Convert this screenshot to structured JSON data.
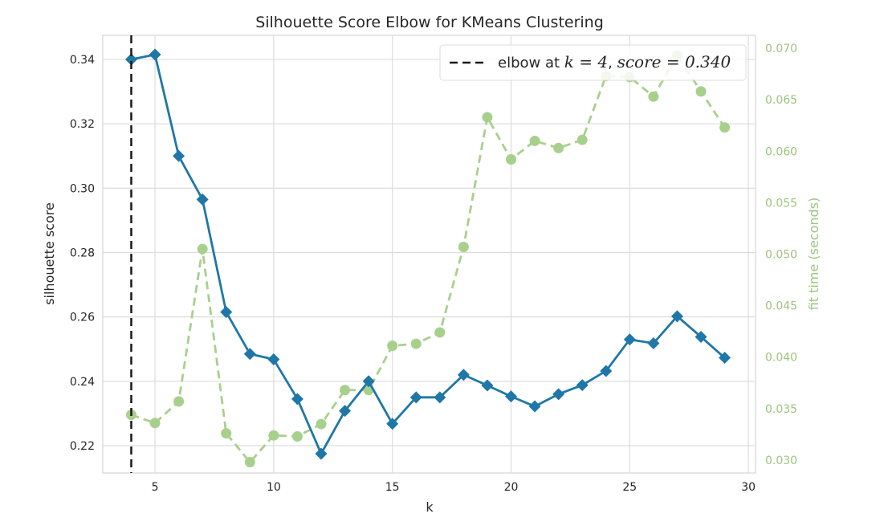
{
  "chart_data": {
    "type": "line",
    "title": "Silhouette Score Elbow for KMeans Clustering",
    "xlabel": "k",
    "ylabel": "silhouette score",
    "y2label": "fit time (seconds)",
    "xlim": [
      2.8,
      30.3
    ],
    "ylim": [
      0.2115,
      0.3475
    ],
    "y2lim": [
      0.02875,
      0.07125
    ],
    "x_ticks": [
      5,
      10,
      15,
      20,
      25,
      30
    ],
    "y_ticks": [
      0.22,
      0.24,
      0.26,
      0.28,
      0.3,
      0.32,
      0.34
    ],
    "y_tick_labels": [
      "0.22",
      "0.24",
      "0.26",
      "0.28",
      "0.30",
      "0.32",
      "0.34"
    ],
    "y2_ticks": [
      0.03,
      0.035,
      0.04,
      0.045,
      0.05,
      0.055,
      0.06,
      0.065,
      0.07
    ],
    "y2_tick_labels": [
      "0.030",
      "0.035",
      "0.040",
      "0.045",
      "0.050",
      "0.055",
      "0.060",
      "0.065",
      "0.070"
    ],
    "grid": true,
    "legend_position": "top-right",
    "x": [
      4,
      5,
      6,
      7,
      8,
      9,
      10,
      11,
      12,
      13,
      14,
      15,
      16,
      17,
      18,
      19,
      20,
      21,
      22,
      23,
      24,
      25,
      26,
      27,
      28,
      29
    ],
    "series": [
      {
        "axis": "left",
        "color": "#1f77a8",
        "marker": "diamond",
        "values": [
          0.34,
          0.3415,
          0.31,
          0.2965,
          0.2615,
          0.2485,
          0.2468,
          0.2345,
          0.2175,
          0.2308,
          0.24,
          0.2268,
          0.235,
          0.235,
          0.242,
          0.2387,
          0.2353,
          0.2322,
          0.236,
          0.2388,
          0.2432,
          0.253,
          0.2518,
          0.2602,
          0.2538,
          0.2473
        ]
      },
      {
        "axis": "right",
        "color": "#a8d08d",
        "marker": "circle",
        "dashed": true,
        "values": [
          0.0344,
          0.0336,
          0.0357,
          0.0505,
          0.0326,
          0.0298,
          0.0324,
          0.0323,
          0.0335,
          0.0368,
          0.0368,
          0.0411,
          0.0413,
          0.0424,
          0.0507,
          0.0633,
          0.0592,
          0.061,
          0.0603,
          0.0611,
          0.0673,
          0.0672,
          0.0653,
          0.0693,
          0.0658,
          0.0623
        ]
      }
    ],
    "elbow": {
      "k": 4,
      "legend_prefix": "elbow at ",
      "legend_k": "k = 4",
      "legend_sep": ", ",
      "legend_score": "score = 0.340"
    }
  }
}
